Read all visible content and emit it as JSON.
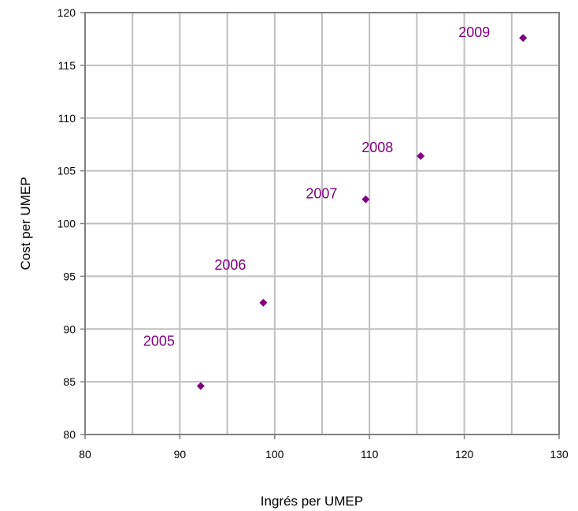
{
  "chart_data": {
    "type": "scatter",
    "title": "",
    "xlabel": "Ingrés per UMEP",
    "ylabel": "Cost  per UMEP",
    "xlim": [
      80,
      130
    ],
    "ylim": [
      80,
      120
    ],
    "x_ticks": [
      80,
      90,
      100,
      110,
      120,
      130
    ],
    "y_ticks": [
      80,
      85,
      90,
      95,
      100,
      105,
      110,
      115,
      120
    ],
    "x_minor_grid_step": 5,
    "grid": true,
    "legend": "none",
    "series": [
      {
        "marker": "diamond",
        "color": "#800080",
        "points": [
          {
            "label": "2005",
            "x": 92.2,
            "y": 84.6
          },
          {
            "label": "2006",
            "x": 98.8,
            "y": 92.5
          },
          {
            "label": "2007",
            "x": 109.6,
            "y": 102.3
          },
          {
            "label": "2008",
            "x": 115.4,
            "y": 106.4
          },
          {
            "label": "2009",
            "x": 126.2,
            "y": 117.6
          }
        ]
      }
    ],
    "colors": {
      "grid": "#bfbfbf",
      "axis": "#808080",
      "marker": "#800080",
      "label": "#800080"
    }
  }
}
